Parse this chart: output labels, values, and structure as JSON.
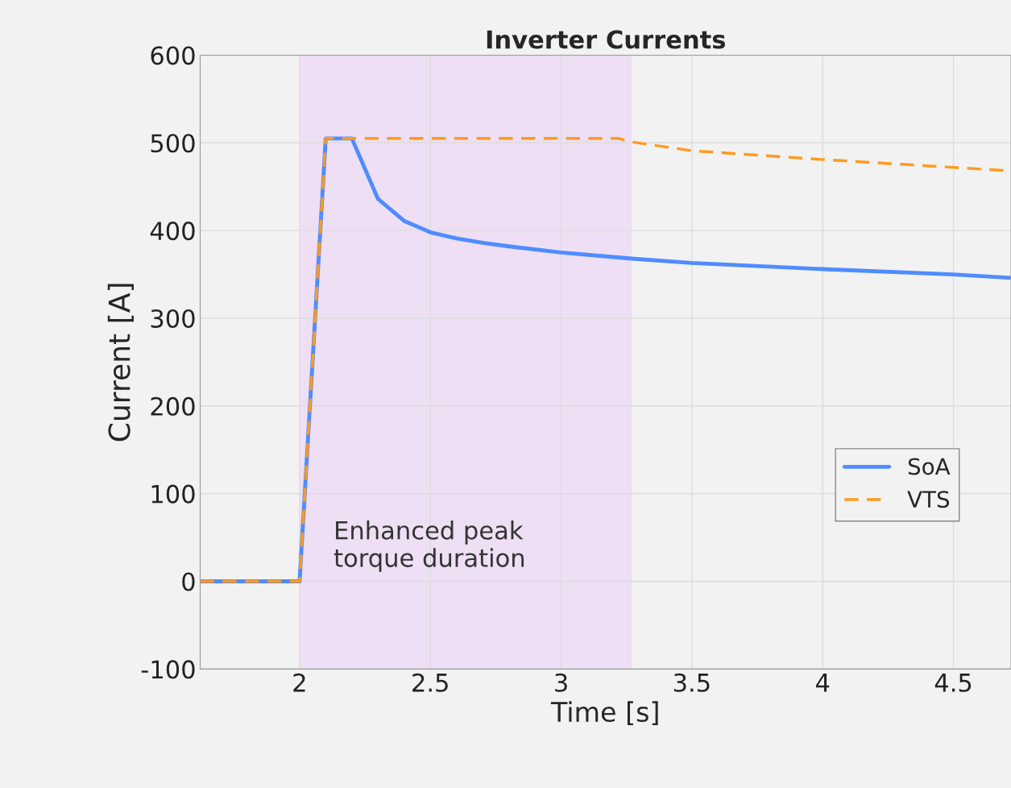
{
  "chart_data": {
    "type": "line",
    "title": "Inverter Currents",
    "xlabel": "Time [s]",
    "ylabel": "Current [A]",
    "xlim": [
      1.62,
      4.72
    ],
    "xticks": [
      2,
      2.5,
      3,
      3.5,
      4,
      4.5
    ],
    "ylim": [
      -100,
      600
    ],
    "yticks": [
      -100,
      0,
      100,
      200,
      300,
      400,
      500,
      600
    ],
    "grid": true,
    "legend": "right",
    "bands": [
      {
        "axis": "x",
        "from": 2,
        "to": 3.27,
        "label": "Enhanced peak\ntorque duration",
        "color": "#eedff4"
      }
    ],
    "series": [
      {
        "name": "SoA",
        "color": "#4f8cff",
        "line_style": "solid",
        "x": [
          1.62,
          2,
          2.1,
          2.2,
          2.3,
          2.4,
          2.5,
          2.6,
          2.7,
          2.8,
          3.0,
          3.27,
          3.5,
          4.0,
          4.5,
          4.72
        ],
        "values": [
          0,
          0,
          505,
          505,
          436,
          411,
          398,
          391,
          386,
          382,
          375,
          368,
          363,
          356,
          350,
          346
        ]
      },
      {
        "name": "VTS",
        "color": "#ff9a1f",
        "line_style": "dashed",
        "x": [
          1.62,
          2,
          2.1,
          3.22,
          3.27,
          3.5,
          4.0,
          4.5,
          4.72
        ],
        "values": [
          0,
          0,
          505,
          505,
          501,
          491,
          481,
          472,
          468
        ]
      }
    ]
  }
}
